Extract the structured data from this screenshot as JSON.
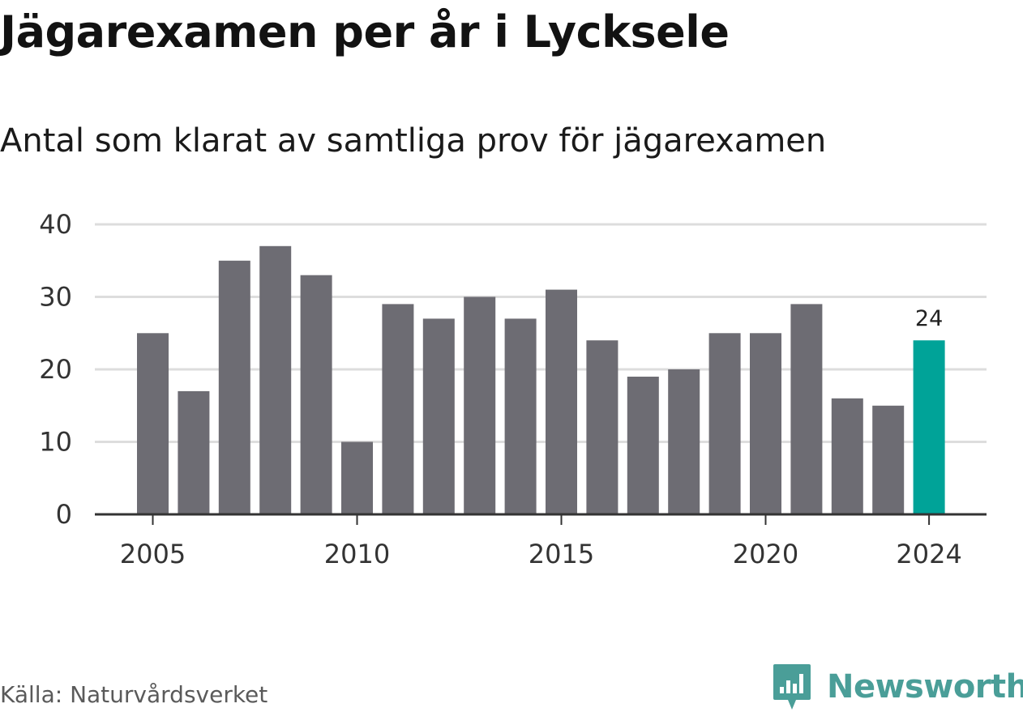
{
  "header": {
    "title": "Jägarexamen per år i Lycksele",
    "subtitle": "Antal som klarat av samtliga prov för jägarexamen"
  },
  "footer": {
    "source": "Källa: Naturvårdsverket",
    "brand": "Newsworthy",
    "brand_icon": "newsworthy-logo-icon"
  },
  "colors": {
    "bar": "#6d6c73",
    "highlight": "#00a398",
    "grid": "#dddddd",
    "axis": "#333333",
    "brand": "#4a9e98"
  },
  "chart_data": {
    "type": "bar",
    "title": "Jägarexamen per år i Lycksele",
    "subtitle": "Antal som klarat av samtliga prov för jägarexamen",
    "xlabel": "",
    "ylabel": "",
    "categories": [
      2005,
      2006,
      2007,
      2008,
      2009,
      2010,
      2011,
      2012,
      2013,
      2014,
      2015,
      2016,
      2017,
      2018,
      2019,
      2020,
      2021,
      2022,
      2023,
      2024
    ],
    "values": [
      25,
      17,
      35,
      37,
      33,
      10,
      29,
      27,
      30,
      27,
      31,
      24,
      19,
      20,
      25,
      25,
      29,
      16,
      15,
      24
    ],
    "highlight_category": 2024,
    "annotations": [
      {
        "category": 2024,
        "text": "24"
      }
    ],
    "ylim": [
      0,
      40
    ],
    "yticks": [
      0,
      10,
      20,
      30,
      40
    ],
    "xticks": [
      2005,
      2010,
      2015,
      2020,
      2024
    ],
    "grid": true,
    "legend": "none"
  }
}
